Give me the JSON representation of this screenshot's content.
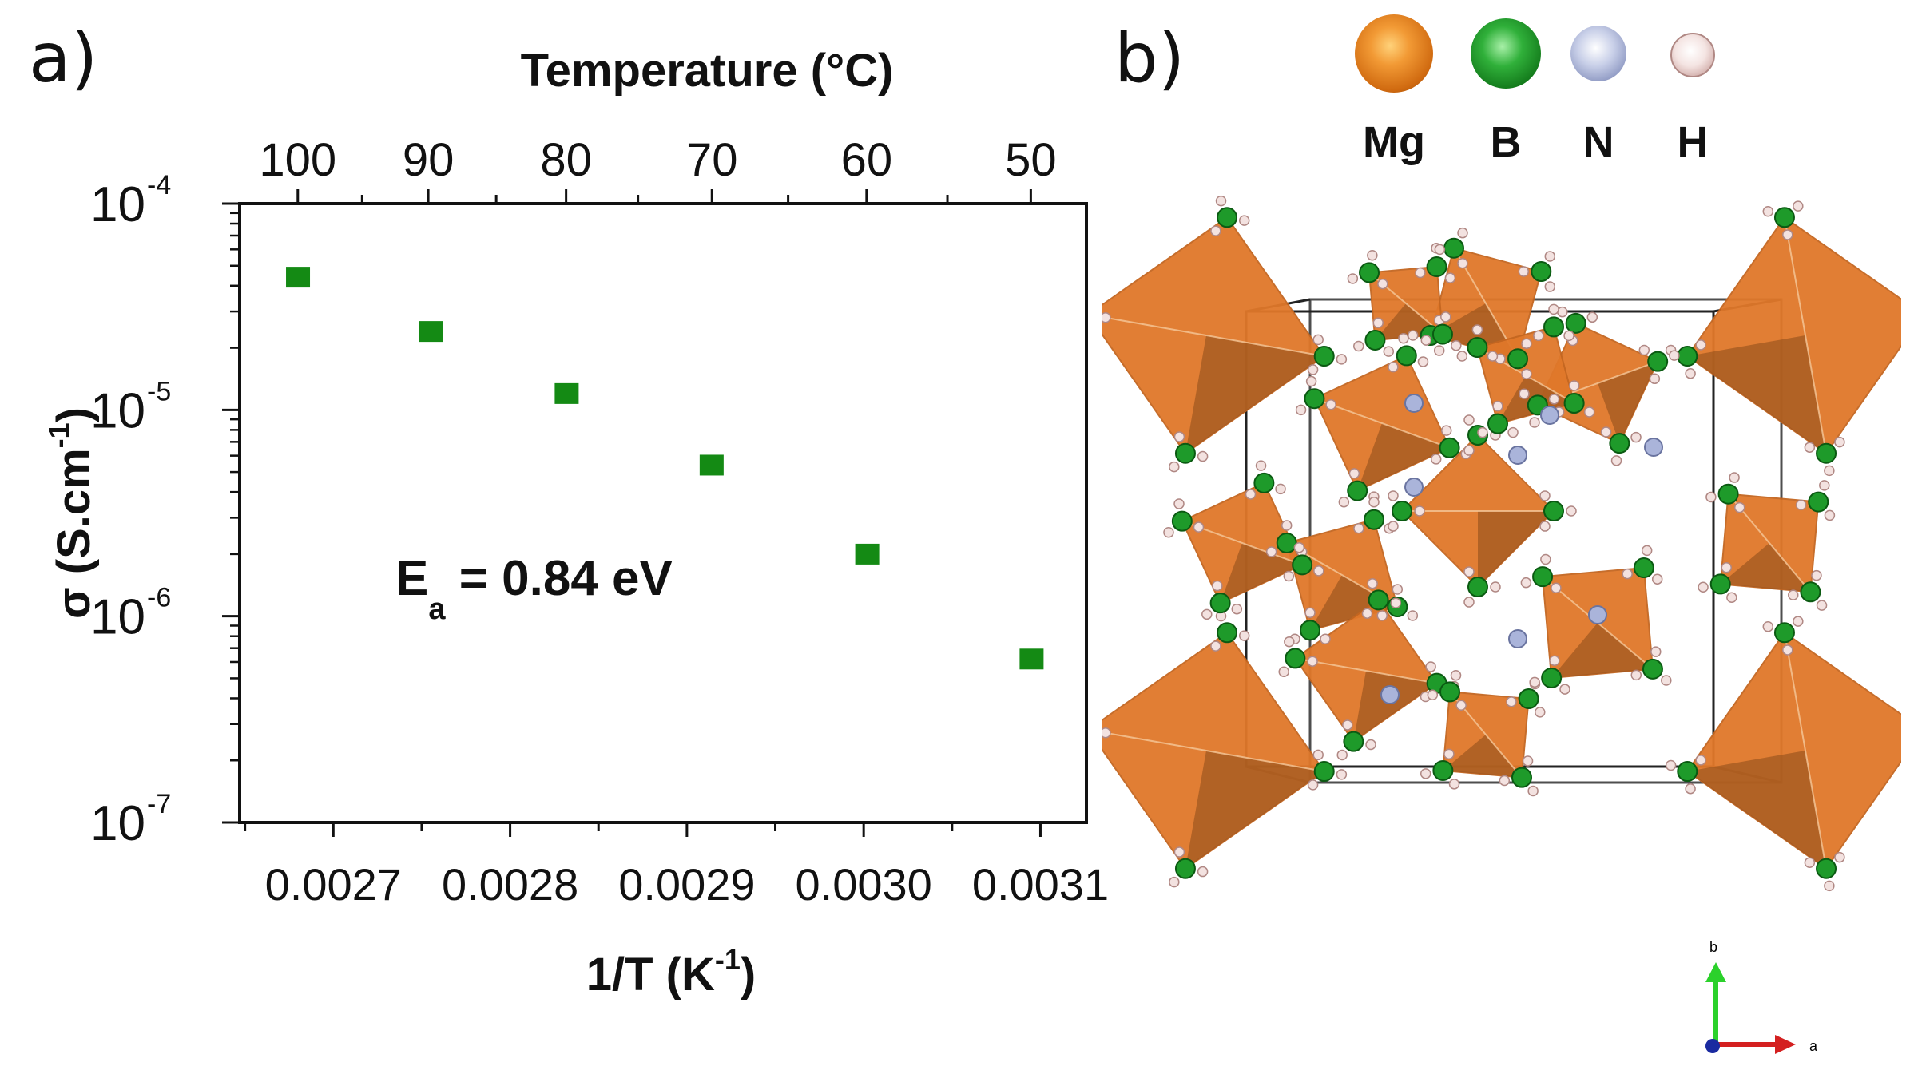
{
  "panel_a": {
    "label": "a)"
  },
  "panel_b": {
    "label": "b)",
    "legend": [
      {
        "name": "Mg",
        "color": "#e07a17"
      },
      {
        "name": "B",
        "color": "#1e9a2a"
      },
      {
        "name": "N",
        "color": "#a9b4d8"
      },
      {
        "name": "H",
        "color": "#efd6d3"
      }
    ],
    "axes_indicator": {
      "b": "b",
      "a": "a"
    }
  },
  "chart_data": {
    "type": "scatter",
    "title": "",
    "xlabel": "1/T (K",
    "xlabel_sup": "-1",
    "xlabel_end": ")",
    "ylabel": "σ (S.cm",
    "ylabel_sup": "-1",
    "ylabel_end": ")",
    "xlim": [
      0.002647,
      0.003126
    ],
    "ylim_log10": [
      -7,
      -4
    ],
    "x_ticks": [
      "0.0027",
      "0.0028",
      "0.0029",
      "0.0030",
      "0.0031"
    ],
    "x_tick_values": [
      0.0027,
      0.0028,
      0.0029,
      0.003,
      0.0031
    ],
    "y_ticks": [
      {
        "base": "10",
        "exp": "-4",
        "value": -4
      },
      {
        "base": "10",
        "exp": "-5",
        "value": -5
      },
      {
        "base": "10",
        "exp": "-6",
        "value": -6
      },
      {
        "base": "10",
        "exp": "-7",
        "value": -7
      }
    ],
    "top_axis": {
      "label": "Temperature (°C)",
      "ticks": [
        "100",
        "90",
        "80",
        "70",
        "60",
        "50"
      ],
      "tick_values_c": [
        100,
        90,
        80,
        70,
        60,
        50
      ]
    },
    "series": [
      {
        "name": "σ",
        "color": "#148a14",
        "marker": "square",
        "x": [
          0.00268,
          0.002755,
          0.002832,
          0.002914,
          0.003002,
          0.003095
        ],
        "y": [
          4.4e-05,
          2.4e-05,
          1.2e-05,
          5.4e-06,
          2e-06,
          6.2e-07
        ]
      }
    ],
    "annotation": {
      "text_main": "E",
      "text_sub": "a",
      "text_rest": " = 0.84 eV"
    }
  },
  "colors": {
    "accent": "#148a14",
    "polyhedron": "#e07a17",
    "cell": "#222222"
  }
}
